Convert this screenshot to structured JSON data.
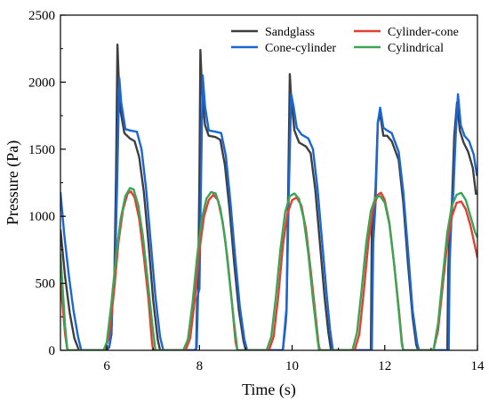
{
  "chart_data": {
    "type": "line",
    "title": "",
    "xlabel": "Time (s)",
    "ylabel": "Pressure (Pa)",
    "xlim": [
      5,
      14
    ],
    "ylim": [
      0,
      2500
    ],
    "x_ticks": [
      6,
      8,
      10,
      12,
      14
    ],
    "y_ticks": [
      0,
      500,
      1000,
      1500,
      2000,
      2500
    ],
    "grid": false,
    "legend_position": "top-right",
    "legend_columns": 2,
    "series": [
      {
        "name": "Sandglass",
        "color": "#3f3f3f",
        "points": [
          [
            5.0,
            900
          ],
          [
            5.1,
            550
          ],
          [
            5.2,
            280
          ],
          [
            5.3,
            90
          ],
          [
            5.4,
            0
          ],
          [
            5.98,
            0
          ],
          [
            6.05,
            20
          ],
          [
            6.1,
            120
          ],
          [
            6.13,
            450
          ],
          [
            6.16,
            470
          ],
          [
            6.2,
            1300
          ],
          [
            6.23,
            2280
          ],
          [
            6.26,
            2000
          ],
          [
            6.3,
            1780
          ],
          [
            6.38,
            1620
          ],
          [
            6.5,
            1580
          ],
          [
            6.6,
            1560
          ],
          [
            6.7,
            1440
          ],
          [
            6.8,
            1180
          ],
          [
            6.9,
            800
          ],
          [
            7.0,
            380
          ],
          [
            7.1,
            80
          ],
          [
            7.15,
            0
          ],
          [
            7.88,
            0
          ],
          [
            7.93,
            10
          ],
          [
            7.95,
            380
          ],
          [
            7.97,
            420
          ],
          [
            8.0,
            1300
          ],
          [
            8.02,
            2240
          ],
          [
            8.06,
            1900
          ],
          [
            8.12,
            1680
          ],
          [
            8.2,
            1600
          ],
          [
            8.35,
            1590
          ],
          [
            8.45,
            1570
          ],
          [
            8.55,
            1380
          ],
          [
            8.65,
            1050
          ],
          [
            8.75,
            650
          ],
          [
            8.85,
            300
          ],
          [
            8.95,
            70
          ],
          [
            9.0,
            0
          ],
          [
            9.8,
            0
          ],
          [
            9.86,
            200
          ],
          [
            9.88,
            300
          ],
          [
            9.92,
            1300
          ],
          [
            9.95,
            2060
          ],
          [
            9.98,
            1880
          ],
          [
            10.05,
            1640
          ],
          [
            10.15,
            1550
          ],
          [
            10.3,
            1520
          ],
          [
            10.4,
            1470
          ],
          [
            10.5,
            1200
          ],
          [
            10.6,
            800
          ],
          [
            10.7,
            400
          ],
          [
            10.78,
            140
          ],
          [
            10.84,
            0
          ],
          [
            11.7,
            0
          ],
          [
            11.72,
            900
          ],
          [
            11.76,
            980
          ],
          [
            11.8,
            1200
          ],
          [
            11.85,
            1700
          ],
          [
            11.9,
            1760
          ],
          [
            11.97,
            1600
          ],
          [
            12.05,
            1600
          ],
          [
            12.15,
            1560
          ],
          [
            12.3,
            1420
          ],
          [
            12.4,
            1100
          ],
          [
            12.5,
            650
          ],
          [
            12.6,
            250
          ],
          [
            12.68,
            40
          ],
          [
            12.72,
            0
          ],
          [
            13.35,
            0
          ],
          [
            13.37,
            600
          ],
          [
            13.41,
            980
          ],
          [
            13.45,
            1100
          ],
          [
            13.5,
            1600
          ],
          [
            13.56,
            1850
          ],
          [
            13.62,
            1640
          ],
          [
            13.7,
            1550
          ],
          [
            13.8,
            1480
          ],
          [
            13.9,
            1360
          ],
          [
            13.97,
            1160
          ]
        ]
      },
      {
        "name": "Cylinder-cone",
        "color": "#e53e33",
        "points": [
          [
            5.0,
            500
          ],
          [
            5.05,
            320
          ],
          [
            5.1,
            120
          ],
          [
            5.15,
            0
          ],
          [
            5.95,
            0
          ],
          [
            6.05,
            100
          ],
          [
            6.15,
            420
          ],
          [
            6.25,
            800
          ],
          [
            6.35,
            1050
          ],
          [
            6.45,
            1170
          ],
          [
            6.52,
            1185
          ],
          [
            6.6,
            1140
          ],
          [
            6.7,
            980
          ],
          [
            6.8,
            700
          ],
          [
            6.9,
            380
          ],
          [
            6.97,
            80
          ],
          [
            7.0,
            0
          ],
          [
            7.7,
            0
          ],
          [
            7.8,
            90
          ],
          [
            7.9,
            380
          ],
          [
            8.0,
            750
          ],
          [
            8.1,
            1000
          ],
          [
            8.2,
            1120
          ],
          [
            8.3,
            1160
          ],
          [
            8.4,
            1120
          ],
          [
            8.5,
            960
          ],
          [
            8.6,
            700
          ],
          [
            8.7,
            360
          ],
          [
            8.78,
            60
          ],
          [
            8.82,
            0
          ],
          [
            9.5,
            0
          ],
          [
            9.6,
            100
          ],
          [
            9.7,
            400
          ],
          [
            9.8,
            780
          ],
          [
            9.9,
            1020
          ],
          [
            10.0,
            1120
          ],
          [
            10.1,
            1140
          ],
          [
            10.2,
            1080
          ],
          [
            10.3,
            900
          ],
          [
            10.4,
            600
          ],
          [
            10.5,
            280
          ],
          [
            10.57,
            50
          ],
          [
            10.6,
            0
          ],
          [
            11.35,
            0
          ],
          [
            11.45,
            120
          ],
          [
            11.55,
            450
          ],
          [
            11.65,
            820
          ],
          [
            11.75,
            1060
          ],
          [
            11.85,
            1160
          ],
          [
            11.92,
            1175
          ],
          [
            12.0,
            1120
          ],
          [
            12.1,
            950
          ],
          [
            12.2,
            650
          ],
          [
            12.3,
            320
          ],
          [
            12.37,
            60
          ],
          [
            12.4,
            0
          ],
          [
            13.05,
            0
          ],
          [
            13.15,
            150
          ],
          [
            13.25,
            480
          ],
          [
            13.35,
            800
          ],
          [
            13.45,
            1000
          ],
          [
            13.55,
            1100
          ],
          [
            13.65,
            1110
          ],
          [
            13.75,
            1050
          ],
          [
            13.85,
            930
          ],
          [
            13.95,
            770
          ],
          [
            14.0,
            690
          ]
        ]
      },
      {
        "name": "Cone-cylinder",
        "color": "#1a66d6",
        "points": [
          [
            5.0,
            1180
          ],
          [
            5.08,
            870
          ],
          [
            5.18,
            560
          ],
          [
            5.28,
            300
          ],
          [
            5.38,
            100
          ],
          [
            5.45,
            0
          ],
          [
            6.0,
            0
          ],
          [
            6.06,
            40
          ],
          [
            6.1,
            160
          ],
          [
            6.13,
            460
          ],
          [
            6.17,
            480
          ],
          [
            6.22,
            1200
          ],
          [
            6.27,
            2030
          ],
          [
            6.31,
            1850
          ],
          [
            6.4,
            1650
          ],
          [
            6.5,
            1640
          ],
          [
            6.65,
            1630
          ],
          [
            6.75,
            1500
          ],
          [
            6.85,
            1200
          ],
          [
            6.95,
            800
          ],
          [
            7.05,
            400
          ],
          [
            7.15,
            100
          ],
          [
            7.22,
            0
          ],
          [
            7.9,
            0
          ],
          [
            7.94,
            20
          ],
          [
            7.97,
            420
          ],
          [
            8.0,
            460
          ],
          [
            8.03,
            1200
          ],
          [
            8.07,
            2050
          ],
          [
            8.12,
            1820
          ],
          [
            8.2,
            1640
          ],
          [
            8.35,
            1630
          ],
          [
            8.47,
            1620
          ],
          [
            8.57,
            1450
          ],
          [
            8.67,
            1100
          ],
          [
            8.77,
            700
          ],
          [
            8.87,
            330
          ],
          [
            8.97,
            80
          ],
          [
            9.03,
            0
          ],
          [
            9.8,
            0
          ],
          [
            9.85,
            200
          ],
          [
            9.88,
            320
          ],
          [
            9.93,
            1200
          ],
          [
            9.98,
            1910
          ],
          [
            10.03,
            1820
          ],
          [
            10.1,
            1660
          ],
          [
            10.2,
            1610
          ],
          [
            10.35,
            1580
          ],
          [
            10.45,
            1500
          ],
          [
            10.55,
            1200
          ],
          [
            10.65,
            800
          ],
          [
            10.75,
            400
          ],
          [
            10.82,
            150
          ],
          [
            10.88,
            0
          ],
          [
            11.72,
            0
          ],
          [
            11.75,
            800
          ],
          [
            11.8,
            1100
          ],
          [
            11.85,
            1700
          ],
          [
            11.9,
            1810
          ],
          [
            11.97,
            1660
          ],
          [
            12.05,
            1640
          ],
          [
            12.15,
            1620
          ],
          [
            12.3,
            1480
          ],
          [
            12.4,
            1180
          ],
          [
            12.5,
            750
          ],
          [
            12.6,
            300
          ],
          [
            12.7,
            50
          ],
          [
            12.74,
            0
          ],
          [
            13.38,
            0
          ],
          [
            13.4,
            650
          ],
          [
            13.44,
            1000
          ],
          [
            13.48,
            1180
          ],
          [
            13.53,
            1600
          ],
          [
            13.58,
            1910
          ],
          [
            13.64,
            1680
          ],
          [
            13.72,
            1600
          ],
          [
            13.82,
            1560
          ],
          [
            13.92,
            1460
          ],
          [
            13.99,
            1300
          ]
        ]
      },
      {
        "name": "Cylindrical",
        "color": "#3aa655",
        "points": [
          [
            5.0,
            720
          ],
          [
            5.05,
            450
          ],
          [
            5.1,
            180
          ],
          [
            5.15,
            0
          ],
          [
            5.93,
            0
          ],
          [
            6.0,
            60
          ],
          [
            6.1,
            350
          ],
          [
            6.2,
            700
          ],
          [
            6.3,
            980
          ],
          [
            6.4,
            1150
          ],
          [
            6.5,
            1210
          ],
          [
            6.58,
            1200
          ],
          [
            6.68,
            1080
          ],
          [
            6.78,
            850
          ],
          [
            6.88,
            530
          ],
          [
            6.98,
            200
          ],
          [
            7.05,
            0
          ],
          [
            7.65,
            0
          ],
          [
            7.75,
            80
          ],
          [
            7.85,
            350
          ],
          [
            7.95,
            700
          ],
          [
            8.05,
            980
          ],
          [
            8.15,
            1130
          ],
          [
            8.25,
            1180
          ],
          [
            8.35,
            1170
          ],
          [
            8.45,
            1060
          ],
          [
            8.55,
            840
          ],
          [
            8.65,
            520
          ],
          [
            8.75,
            200
          ],
          [
            8.82,
            0
          ],
          [
            9.45,
            0
          ],
          [
            9.55,
            100
          ],
          [
            9.65,
            400
          ],
          [
            9.75,
            760
          ],
          [
            9.85,
            1030
          ],
          [
            9.95,
            1150
          ],
          [
            10.05,
            1170
          ],
          [
            10.15,
            1130
          ],
          [
            10.25,
            980
          ],
          [
            10.35,
            720
          ],
          [
            10.45,
            380
          ],
          [
            10.55,
            80
          ],
          [
            10.58,
            0
          ],
          [
            11.3,
            0
          ],
          [
            11.4,
            130
          ],
          [
            11.5,
            450
          ],
          [
            11.6,
            800
          ],
          [
            11.7,
            1040
          ],
          [
            11.8,
            1140
          ],
          [
            11.9,
            1150
          ],
          [
            12.0,
            1100
          ],
          [
            12.1,
            940
          ],
          [
            12.2,
            650
          ],
          [
            12.3,
            300
          ],
          [
            12.37,
            40
          ],
          [
            12.4,
            0
          ],
          [
            13.05,
            0
          ],
          [
            13.15,
            200
          ],
          [
            13.25,
            550
          ],
          [
            13.35,
            880
          ],
          [
            13.45,
            1080
          ],
          [
            13.55,
            1160
          ],
          [
            13.65,
            1175
          ],
          [
            13.75,
            1120
          ],
          [
            13.85,
            1000
          ],
          [
            13.95,
            880
          ],
          [
            14.0,
            840
          ]
        ]
      }
    ]
  }
}
